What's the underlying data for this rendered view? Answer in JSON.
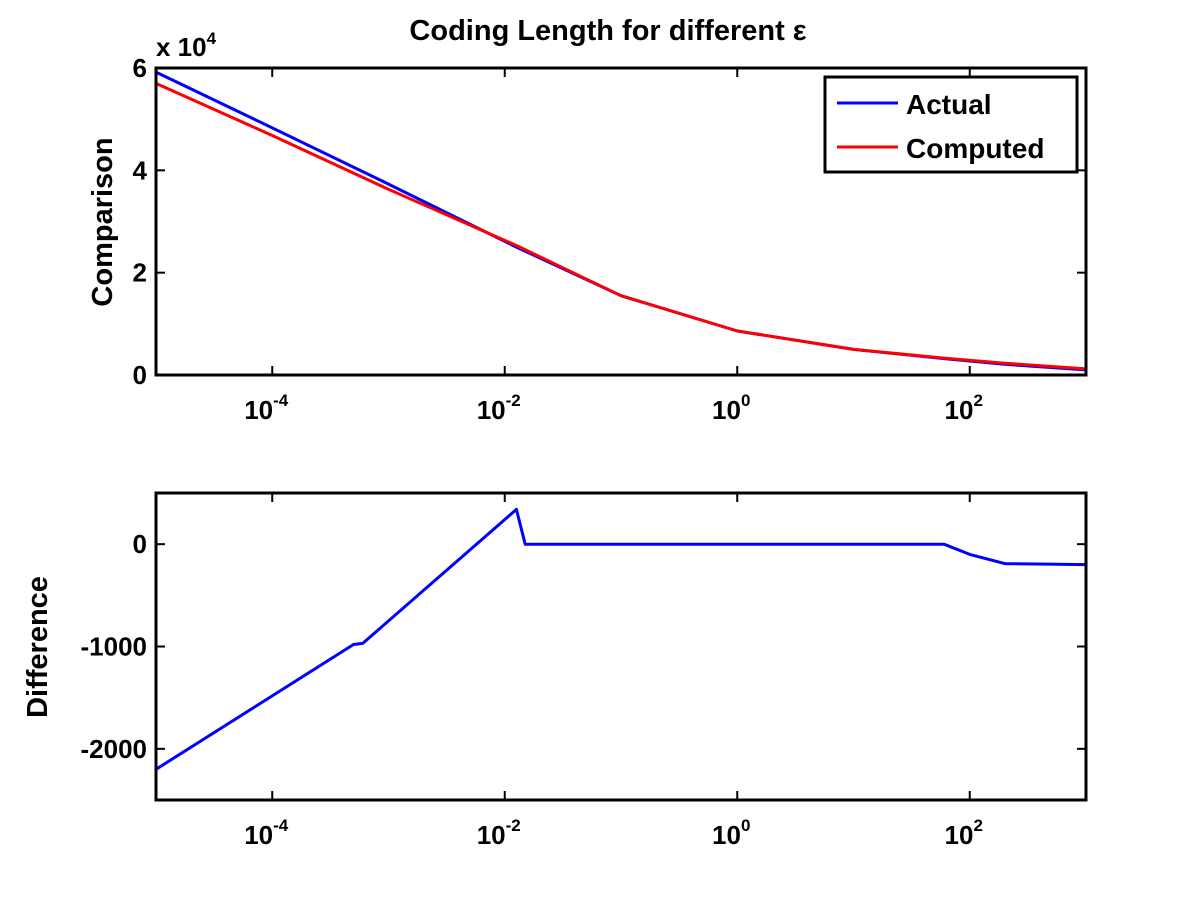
{
  "figure": {
    "title": "Coding Length for different ε"
  },
  "chart_data": [
    {
      "type": "line",
      "ylabel": "Comparison",
      "x_scale": "log",
      "xlim": [
        1e-05,
        1000
      ],
      "ylim": [
        0,
        60000
      ],
      "y_multiplier": {
        "prefix": "x 10",
        "exponent": "4"
      },
      "xticks": [
        {
          "value": 0.0001,
          "base": "10",
          "exponent": "-4"
        },
        {
          "value": 0.01,
          "base": "10",
          "exponent": "-2"
        },
        {
          "value": 1,
          "base": "10",
          "exponent": "0"
        },
        {
          "value": 100,
          "base": "10",
          "exponent": "2"
        }
      ],
      "yticks": [
        {
          "value": 0,
          "label": "0"
        },
        {
          "value": 20000,
          "label": "2"
        },
        {
          "value": 40000,
          "label": "4"
        },
        {
          "value": 60000,
          "label": "6"
        }
      ],
      "legend": {
        "position": "top-right"
      },
      "series": [
        {
          "name": "Actual",
          "color": "#0000ff",
          "x": [
            1e-05,
            0.0001,
            0.001,
            0.0126,
            0.1,
            1,
            10,
            60,
            200,
            1000
          ],
          "y": [
            59200,
            48300,
            37300,
            25000,
            15500,
            8600,
            5000,
            3200,
            2100,
            1000
          ]
        },
        {
          "name": "Computed",
          "color": "#ff0000",
          "x": [
            1e-05,
            0.0001,
            0.001,
            0.0126,
            0.1,
            1,
            10,
            60,
            200,
            1000
          ],
          "y": [
            57000,
            46800,
            36300,
            25300,
            15500,
            8600,
            5000,
            3300,
            2300,
            1200
          ]
        }
      ]
    },
    {
      "type": "line",
      "ylabel": "Difference",
      "x_scale": "log",
      "xlim": [
        1e-05,
        1000
      ],
      "ylim": [
        -2500,
        500
      ],
      "xticks": [
        {
          "value": 0.0001,
          "base": "10",
          "exponent": "-4"
        },
        {
          "value": 0.01,
          "base": "10",
          "exponent": "-2"
        },
        {
          "value": 1,
          "base": "10",
          "exponent": "0"
        },
        {
          "value": 100,
          "base": "10",
          "exponent": "2"
        }
      ],
      "yticks": [
        {
          "value": 0,
          "label": "0"
        },
        {
          "value": -1000,
          "label": "-1000"
        },
        {
          "value": -2000,
          "label": "-2000"
        }
      ],
      "series": [
        {
          "color": "#0000ff",
          "x": [
            1e-05,
            0.0005,
            0.0006,
            0.0126,
            0.015,
            60,
            100,
            200,
            1000
          ],
          "y": [
            -2200,
            -980,
            -970,
            340,
            0,
            0,
            -100,
            -190,
            -200
          ]
        }
      ]
    }
  ]
}
